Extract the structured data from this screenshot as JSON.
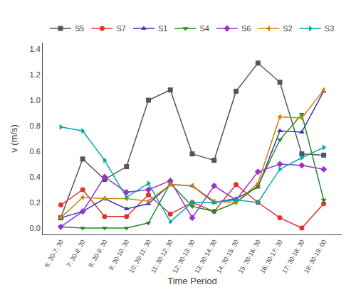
{
  "chart_data": {
    "type": "line",
    "categories": [
      "6; 30-7; 30",
      "7; 30-8; 30",
      "8; 30-9; 30",
      "9; 30-10; 30",
      "10; 30-11; 30",
      "11; 30-12; 30",
      "12; 30-13; 30",
      "13; 30-14; 30",
      "14; 30-15; 30",
      "15; 30-16; 30",
      "16; 30-17; 30",
      "17; 30-18; 30",
      "18; 30-19; 00"
    ],
    "series": [
      {
        "name": "S5",
        "color": "#555555",
        "marker": "square",
        "values": [
          0.08,
          0.54,
          0.38,
          0.48,
          1.0,
          1.08,
          0.58,
          0.53,
          1.07,
          1.29,
          1.14,
          0.58,
          0.57
        ]
      },
      {
        "name": "S7",
        "color": "#DD3333",
        "marker": "circle",
        "values": [
          0.18,
          0.3,
          0.09,
          0.09,
          0.26,
          0.11,
          0.2,
          0.13,
          0.34,
          0.2,
          0.08,
          0.0,
          0.19
        ]
      },
      {
        "name": "S1",
        "color": "#3333BB",
        "marker": "triangle-up",
        "values": [
          0.08,
          0.13,
          0.23,
          0.15,
          0.19,
          0.34,
          0.33,
          0.2,
          0.23,
          0.32,
          0.76,
          0.75,
          1.07
        ]
      },
      {
        "name": "S4",
        "color": "#228B22",
        "marker": "triangle-down",
        "values": [
          0.01,
          0.0,
          0.0,
          0.0,
          0.04,
          0.35,
          0.17,
          0.13,
          0.2,
          0.33,
          0.69,
          0.89,
          0.22
        ]
      },
      {
        "name": "S6",
        "color": "#9933CC",
        "marker": "diamond",
        "values": [
          0.01,
          0.13,
          0.4,
          0.28,
          0.3,
          0.37,
          0.08,
          0.33,
          0.22,
          0.44,
          0.5,
          0.49,
          0.46
        ]
      },
      {
        "name": "S2",
        "color": "#CC8800",
        "marker": "triangle-left",
        "values": [
          0.08,
          0.24,
          0.23,
          0.23,
          0.21,
          0.34,
          0.33,
          0.21,
          0.2,
          0.35,
          0.87,
          0.86,
          1.08
        ]
      },
      {
        "name": "S3",
        "color": "#00AAAA",
        "marker": "triangle-right",
        "values": [
          0.79,
          0.76,
          0.53,
          0.24,
          0.35,
          0.05,
          0.2,
          0.2,
          0.22,
          0.2,
          0.46,
          0.55,
          0.63
        ]
      }
    ],
    "xlabel": "Time Period",
    "ylabel": "v (m/s)",
    "ylim": [
      -0.05,
      1.45
    ],
    "yticks": [
      {
        "value": 0,
        "label": "0.0"
      },
      0.2,
      0.4,
      0.6,
      0.8,
      {
        "value": 1,
        "label": "1.0"
      },
      1.2,
      1.4
    ],
    "grid": false,
    "legend": "top"
  }
}
